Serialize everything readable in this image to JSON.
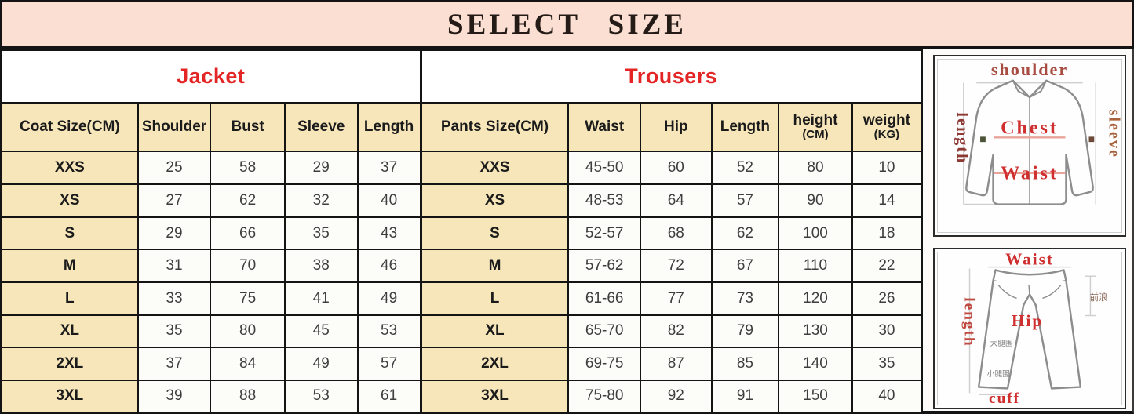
{
  "title": "SELECT SIZE",
  "jacket": {
    "section_label": "Jacket",
    "headers": [
      {
        "label": "Coat Size(CM)"
      },
      {
        "label": "Shoulder"
      },
      {
        "label": "Bust"
      },
      {
        "label": "Sleeve"
      },
      {
        "label": "Length"
      }
    ],
    "rows": [
      {
        "size": "XXS",
        "values": [
          "25",
          "58",
          "29",
          "37"
        ]
      },
      {
        "size": "XS",
        "values": [
          "27",
          "62",
          "32",
          "40"
        ]
      },
      {
        "size": "S",
        "values": [
          "29",
          "66",
          "35",
          "43"
        ]
      },
      {
        "size": "M",
        "values": [
          "31",
          "70",
          "38",
          "46"
        ]
      },
      {
        "size": "L",
        "values": [
          "33",
          "75",
          "41",
          "49"
        ]
      },
      {
        "size": "XL",
        "values": [
          "35",
          "80",
          "45",
          "53"
        ]
      },
      {
        "size": "2XL",
        "values": [
          "37",
          "84",
          "49",
          "57"
        ]
      },
      {
        "size": "3XL",
        "values": [
          "39",
          "88",
          "53",
          "61"
        ]
      }
    ]
  },
  "trousers": {
    "section_label": "Trousers",
    "headers": [
      {
        "label": "Pants Size(CM)"
      },
      {
        "label": "Waist"
      },
      {
        "label": "Hip"
      },
      {
        "label": "Length"
      },
      {
        "label": "height",
        "unit": "(CM)"
      },
      {
        "label": "weight",
        "unit": "(KG)"
      }
    ],
    "rows": [
      {
        "size": "XXS",
        "values": [
          "45-50",
          "60",
          "52",
          "80",
          "10"
        ]
      },
      {
        "size": "XS",
        "values": [
          "48-53",
          "64",
          "57",
          "90",
          "14"
        ]
      },
      {
        "size": "S",
        "values": [
          "52-57",
          "68",
          "62",
          "100",
          "18"
        ]
      },
      {
        "size": "M",
        "values": [
          "57-62",
          "72",
          "67",
          "110",
          "22"
        ]
      },
      {
        "size": "L",
        "values": [
          "61-66",
          "77",
          "73",
          "120",
          "26"
        ]
      },
      {
        "size": "XL",
        "values": [
          "65-70",
          "82",
          "79",
          "130",
          "30"
        ]
      },
      {
        "size": "2XL",
        "values": [
          "69-75",
          "87",
          "85",
          "140",
          "35"
        ]
      },
      {
        "size": "3XL",
        "values": [
          "75-80",
          "92",
          "91",
          "150",
          "40"
        ]
      }
    ]
  },
  "jacket_diagram": {
    "shoulder": "shoulder",
    "length": "length",
    "sleeve": "sleeve",
    "chest": "Chest",
    "waist": "Waist"
  },
  "trousers_diagram": {
    "waist": "Waist",
    "length": "length",
    "hip": "Hip",
    "cuff": "cuff",
    "front_rise": "前浪",
    "thigh": "大腿围",
    "calf": "小腿围"
  },
  "colors": {
    "title_bg": "#fadfd2",
    "header_bg": "#f6e6ba",
    "section_label_red": "#e42525",
    "diagram_red": "#cf2f2f",
    "diagram_brown": "#a84c41",
    "border": "#141414"
  }
}
